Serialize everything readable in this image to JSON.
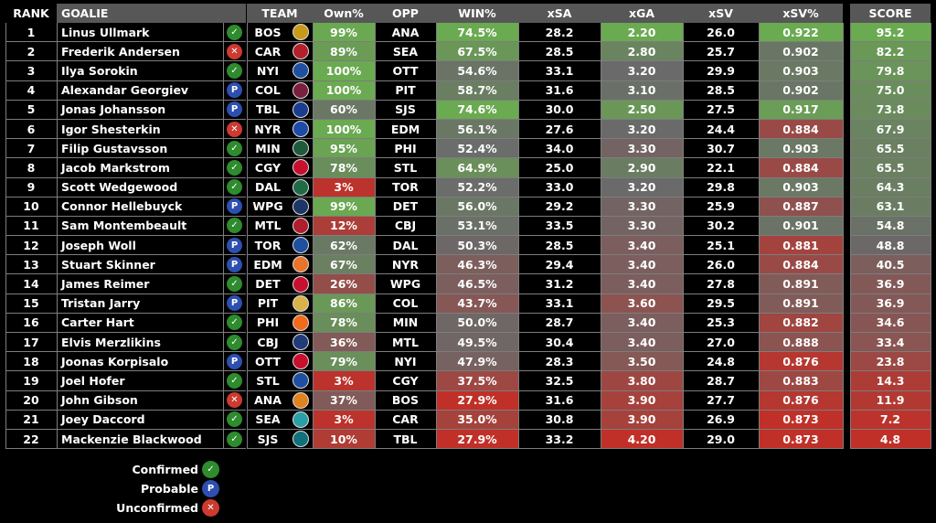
{
  "headers": {
    "rank": "RANK",
    "goalie": "GOALIE",
    "team": "TEAM",
    "own": "Own%",
    "opp": "OPP",
    "win": "WIN%",
    "xsa": "xSA",
    "xga": "xGA",
    "xsv": "xSV",
    "xsvpct": "xSV%",
    "score": "SCORE"
  },
  "status_glyphs": {
    "confirmed": "✓",
    "probable": "P",
    "unconfirmed": "✕"
  },
  "status_colors": {
    "confirmed": "#2e8b2e",
    "probable": "#2d4fb0",
    "unconfirmed": "#cc3a30"
  },
  "legend": [
    {
      "label": "Confirmed",
      "status": "confirmed"
    },
    {
      "label": "Probable",
      "status": "probable"
    },
    {
      "label": "Unconfirmed",
      "status": "unconfirmed"
    }
  ],
  "rows": [
    {
      "rank": "1",
      "goalie": "Linus Ullmark",
      "status": "confirmed",
      "team": "BOS",
      "logo_icon": "bruins-logo-icon",
      "logo_color": "#c99a1a",
      "own": "99%",
      "opp": "ANA",
      "win": "74.5%",
      "xsa": "28.2",
      "xga": "2.20",
      "xsv": "26.0",
      "xsvpct": "0.922",
      "score": "95.2"
    },
    {
      "rank": "2",
      "goalie": "Frederik Andersen",
      "status": "unconfirmed",
      "team": "CAR",
      "logo_icon": "hurricanes-logo-icon",
      "logo_color": "#b3202a",
      "own": "89%",
      "opp": "SEA",
      "win": "67.5%",
      "xsa": "28.5",
      "xga": "2.80",
      "xsv": "25.7",
      "xsvpct": "0.902",
      "score": "82.2"
    },
    {
      "rank": "3",
      "goalie": "Ilya Sorokin",
      "status": "confirmed",
      "team": "NYI",
      "logo_icon": "islanders-logo-icon",
      "logo_color": "#1f4fa0",
      "own": "100%",
      "opp": "OTT",
      "win": "54.6%",
      "xsa": "33.1",
      "xga": "3.20",
      "xsv": "29.9",
      "xsvpct": "0.903",
      "score": "79.8"
    },
    {
      "rank": "4",
      "goalie": "Alexandar Georgiev",
      "status": "probable",
      "team": "COL",
      "logo_icon": "avalanche-logo-icon",
      "logo_color": "#7a1f3d",
      "own": "100%",
      "opp": "PIT",
      "win": "58.7%",
      "xsa": "31.6",
      "xga": "3.10",
      "xsv": "28.5",
      "xsvpct": "0.902",
      "score": "75.0"
    },
    {
      "rank": "5",
      "goalie": "Jonas Johansson",
      "status": "probable",
      "team": "TBL",
      "logo_icon": "lightning-logo-icon",
      "logo_color": "#1a3d8f",
      "own": "60%",
      "opp": "SJS",
      "win": "74.6%",
      "xsa": "30.0",
      "xga": "2.50",
      "xsv": "27.5",
      "xsvpct": "0.917",
      "score": "73.8"
    },
    {
      "rank": "6",
      "goalie": "Igor Shesterkin",
      "status": "unconfirmed",
      "team": "NYR",
      "logo_icon": "rangers-logo-icon",
      "logo_color": "#1e4aa8",
      "own": "100%",
      "opp": "EDM",
      "win": "56.1%",
      "xsa": "27.6",
      "xga": "3.20",
      "xsv": "24.4",
      "xsvpct": "0.884",
      "score": "67.9"
    },
    {
      "rank": "7",
      "goalie": "Filip Gustavsson",
      "status": "confirmed",
      "team": "MIN",
      "logo_icon": "wild-logo-icon",
      "logo_color": "#1e5b3a",
      "own": "95%",
      "opp": "PHI",
      "win": "52.4%",
      "xsa": "34.0",
      "xga": "3.30",
      "xsv": "30.7",
      "xsvpct": "0.903",
      "score": "65.5"
    },
    {
      "rank": "8",
      "goalie": "Jacob Markstrom",
      "status": "confirmed",
      "team": "CGY",
      "logo_icon": "flames-logo-icon",
      "logo_color": "#c8102e",
      "own": "78%",
      "opp": "STL",
      "win": "64.9%",
      "xsa": "25.0",
      "xga": "2.90",
      "xsv": "22.1",
      "xsvpct": "0.884",
      "score": "65.5"
    },
    {
      "rank": "9",
      "goalie": "Scott Wedgewood",
      "status": "confirmed",
      "team": "DAL",
      "logo_icon": "stars-logo-icon",
      "logo_color": "#1f6b45",
      "own": "3%",
      "opp": "TOR",
      "win": "52.2%",
      "xsa": "33.0",
      "xga": "3.20",
      "xsv": "29.8",
      "xsvpct": "0.903",
      "score": "64.3"
    },
    {
      "rank": "10",
      "goalie": "Connor Hellebuyck",
      "status": "probable",
      "team": "WPG",
      "logo_icon": "jets-logo-icon",
      "logo_color": "#1d3567",
      "own": "99%",
      "opp": "DET",
      "win": "56.0%",
      "xsa": "29.2",
      "xga": "3.30",
      "xsv": "25.9",
      "xsvpct": "0.887",
      "score": "63.1"
    },
    {
      "rank": "11",
      "goalie": "Sam Montembeault",
      "status": "confirmed",
      "team": "MTL",
      "logo_icon": "canadiens-logo-icon",
      "logo_color": "#af1e2d",
      "own": "12%",
      "opp": "CBJ",
      "win": "53.1%",
      "xsa": "33.5",
      "xga": "3.30",
      "xsv": "30.2",
      "xsvpct": "0.901",
      "score": "54.8"
    },
    {
      "rank": "12",
      "goalie": "Joseph Woll",
      "status": "probable",
      "team": "TOR",
      "logo_icon": "maple-leafs-logo-icon",
      "logo_color": "#1f4fa0",
      "own": "62%",
      "opp": "DAL",
      "win": "50.3%",
      "xsa": "28.5",
      "xga": "3.40",
      "xsv": "25.1",
      "xsvpct": "0.881",
      "score": "48.8"
    },
    {
      "rank": "13",
      "goalie": "Stuart Skinner",
      "status": "probable",
      "team": "EDM",
      "logo_icon": "oilers-logo-icon",
      "logo_color": "#e8742a",
      "own": "67%",
      "opp": "NYR",
      "win": "46.3%",
      "xsa": "29.4",
      "xga": "3.40",
      "xsv": "26.0",
      "xsvpct": "0.884",
      "score": "40.5"
    },
    {
      "rank": "14",
      "goalie": "James Reimer",
      "status": "confirmed",
      "team": "DET",
      "logo_icon": "red-wings-logo-icon",
      "logo_color": "#c8102e",
      "own": "26%",
      "opp": "WPG",
      "win": "46.5%",
      "xsa": "31.2",
      "xga": "3.40",
      "xsv": "27.8",
      "xsvpct": "0.891",
      "score": "36.9"
    },
    {
      "rank": "15",
      "goalie": "Tristan Jarry",
      "status": "probable",
      "team": "PIT",
      "logo_icon": "penguins-logo-icon",
      "logo_color": "#d8b24a",
      "own": "86%",
      "opp": "COL",
      "win": "43.7%",
      "xsa": "33.1",
      "xga": "3.60",
      "xsv": "29.5",
      "xsvpct": "0.891",
      "score": "36.9"
    },
    {
      "rank": "16",
      "goalie": "Carter Hart",
      "status": "confirmed",
      "team": "PHI",
      "logo_icon": "flyers-logo-icon",
      "logo_color": "#f26a1b",
      "own": "78%",
      "opp": "MIN",
      "win": "50.0%",
      "xsa": "28.7",
      "xga": "3.40",
      "xsv": "25.3",
      "xsvpct": "0.882",
      "score": "34.6"
    },
    {
      "rank": "17",
      "goalie": "Elvis Merzlikins",
      "status": "confirmed",
      "team": "CBJ",
      "logo_icon": "blue-jackets-logo-icon",
      "logo_color": "#1f3c78",
      "own": "36%",
      "opp": "MTL",
      "win": "49.5%",
      "xsa": "30.4",
      "xga": "3.40",
      "xsv": "27.0",
      "xsvpct": "0.888",
      "score": "33.4"
    },
    {
      "rank": "18",
      "goalie": "Joonas Korpisalo",
      "status": "probable",
      "team": "OTT",
      "logo_icon": "senators-logo-icon",
      "logo_color": "#c8102e",
      "own": "79%",
      "opp": "NYI",
      "win": "47.9%",
      "xsa": "28.3",
      "xga": "3.50",
      "xsv": "24.8",
      "xsvpct": "0.876",
      "score": "23.8"
    },
    {
      "rank": "19",
      "goalie": "Joel Hofer",
      "status": "confirmed",
      "team": "STL",
      "logo_icon": "blues-logo-icon",
      "logo_color": "#1f4fa0",
      "own": "3%",
      "opp": "CGY",
      "win": "37.5%",
      "xsa": "32.5",
      "xga": "3.80",
      "xsv": "28.7",
      "xsvpct": "0.883",
      "score": "14.3"
    },
    {
      "rank": "20",
      "goalie": "John Gibson",
      "status": "unconfirmed",
      "team": "ANA",
      "logo_icon": "ducks-logo-icon",
      "logo_color": "#e0821f",
      "own": "37%",
      "opp": "BOS",
      "win": "27.9%",
      "xsa": "31.6",
      "xga": "3.90",
      "xsv": "27.7",
      "xsvpct": "0.876",
      "score": "11.9"
    },
    {
      "rank": "21",
      "goalie": "Joey Daccord",
      "status": "confirmed",
      "team": "SEA",
      "logo_icon": "kraken-logo-icon",
      "logo_color": "#2a9fa8",
      "own": "3%",
      "opp": "CAR",
      "win": "35.0%",
      "xsa": "30.8",
      "xga": "3.90",
      "xsv": "26.9",
      "xsvpct": "0.873",
      "score": "7.2"
    },
    {
      "rank": "22",
      "goalie": "Mackenzie Blackwood",
      "status": "confirmed",
      "team": "SJS",
      "logo_icon": "sharks-logo-icon",
      "logo_color": "#11707a",
      "own": "10%",
      "opp": "TBL",
      "win": "27.9%",
      "xsa": "33.2",
      "xga": "4.20",
      "xsv": "29.0",
      "xsvpct": "0.873",
      "score": "4.8"
    }
  ]
}
